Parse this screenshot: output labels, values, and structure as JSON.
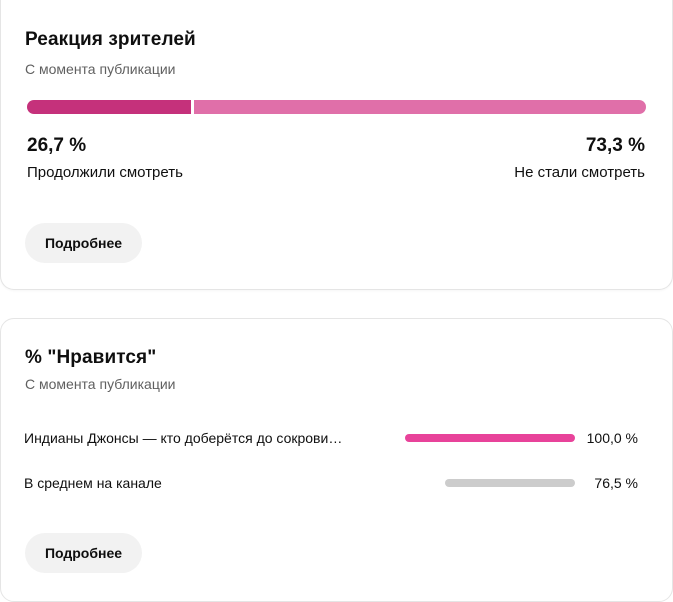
{
  "retention_card": {
    "title": "Реакция зрителей",
    "subtitle": "С момента публикации",
    "continued": {
      "value": "26,7 %",
      "label": "Продолжили смотреть",
      "fraction": 0.267,
      "color": "#c5317b"
    },
    "stopped": {
      "value": "73,3 %",
      "label": "Не стали смотреть",
      "fraction": 0.733,
      "color": "#e06fa9"
    },
    "more_button": "Подробнее"
  },
  "likes_card": {
    "title": "% \"Нравится\"",
    "subtitle": "С момента публикации",
    "rows": [
      {
        "label": "Индианы Джонсы — кто доберётся до сокрови…",
        "value": "100,0 %",
        "fraction": 1.0,
        "color": "#e8439a"
      },
      {
        "label": "В среднем на канале",
        "value": "76,5 %",
        "fraction": 0.765,
        "color": "#cccccc"
      }
    ],
    "more_button": "Подробнее"
  }
}
